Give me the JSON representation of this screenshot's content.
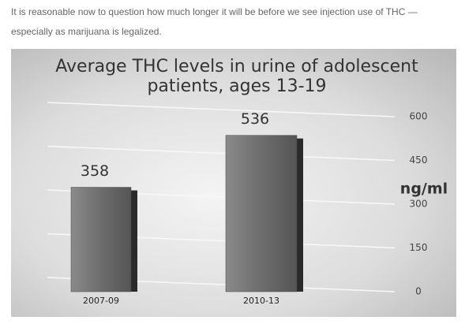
{
  "text": {
    "paragraph_lines": [
      "It is reasonable now to question how much longer it will be before we see injection use of THC —",
      "especially as marijuana is legalized."
    ]
  },
  "chart_data": {
    "type": "bar",
    "title": [
      "Average THC levels in urine of adolescent",
      "patients, ages 13-19"
    ],
    "y_label": "ng/ml",
    "categories": [
      "2007-09",
      "2010-13"
    ],
    "values": [
      358,
      536
    ],
    "color": "#6a6a6a",
    "ylim": [
      0,
      600
    ],
    "yticks": [
      0,
      150,
      300,
      450,
      600
    ],
    "grid": true
  }
}
